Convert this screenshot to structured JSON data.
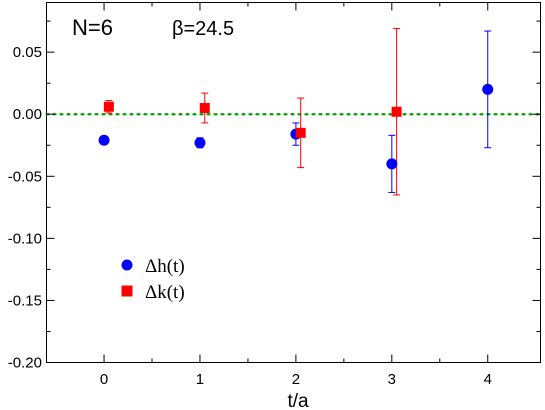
{
  "chart_data": {
    "type": "scatter",
    "xlabel": "t/a",
    "ylabel": "",
    "xlim": [
      -0.6,
      4.55
    ],
    "ylim": [
      -0.2,
      0.09
    ],
    "x_ticks": [
      0,
      1,
      2,
      3,
      4
    ],
    "y_ticks": [
      -0.2,
      -0.15,
      -0.1,
      -0.05,
      0.0,
      0.05
    ],
    "y_tick_labels": [
      "-0.20",
      "-0.15",
      "-0.10",
      "-0.05",
      "0.00",
      "0.05"
    ],
    "grid": false,
    "legend_position": "lower-left",
    "annotations": [
      {
        "id": "n",
        "text": "N=6"
      },
      {
        "id": "beta",
        "text": "β=24.5"
      }
    ],
    "reference_line": {
      "y": 0.0,
      "style": "dotted",
      "color": "#00a000"
    },
    "series": [
      {
        "name": "Δh(t)",
        "marker": "circle",
        "color": "#0000ff",
        "points": [
          {
            "x": 0,
            "y": -0.021,
            "err": 0.0
          },
          {
            "x": 1,
            "y": -0.023,
            "err": 0.004
          },
          {
            "x": 2,
            "y": -0.016,
            "err": 0.009
          },
          {
            "x": 3,
            "y": -0.04,
            "err": 0.023
          },
          {
            "x": 4,
            "y": 0.02,
            "err": 0.047
          }
        ]
      },
      {
        "name": "Δk(t)",
        "marker": "square",
        "color": "#ff0000",
        "points": [
          {
            "x": 0.05,
            "y": 0.006,
            "err": 0.005
          },
          {
            "x": 1.05,
            "y": 0.005,
            "err": 0.012
          },
          {
            "x": 2.05,
            "y": -0.015,
            "err": 0.028
          },
          {
            "x": 3.05,
            "y": 0.002,
            "err": 0.067
          }
        ]
      }
    ]
  }
}
